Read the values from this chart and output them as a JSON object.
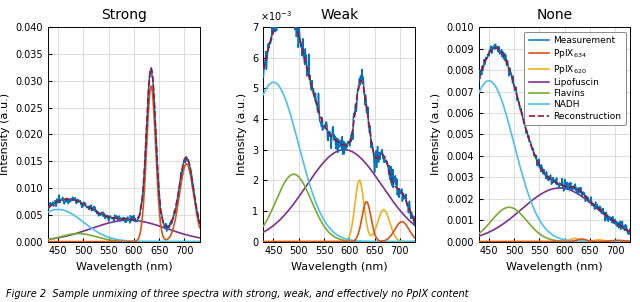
{
  "title_strong": "Strong",
  "title_weak": "Weak",
  "title_none": "None",
  "xlabel": "Wavelength (nm)",
  "ylabel": "Intensity (a.u.)",
  "colors": {
    "measurement": "#0072BD",
    "ppix634": "#D95319",
    "ppix620": "#EDB120",
    "lipofuscin": "#7E2F8E",
    "flavins": "#77AC30",
    "nadh": "#4DBEEE",
    "reconstruction": "#A2142F"
  },
  "legend_labels": [
    "Measurement",
    "PpIX$_{634}$",
    "PpIX$_{620}$",
    "Lipofuscin",
    "Flavins",
    "NADH",
    "Reconstruction"
  ]
}
